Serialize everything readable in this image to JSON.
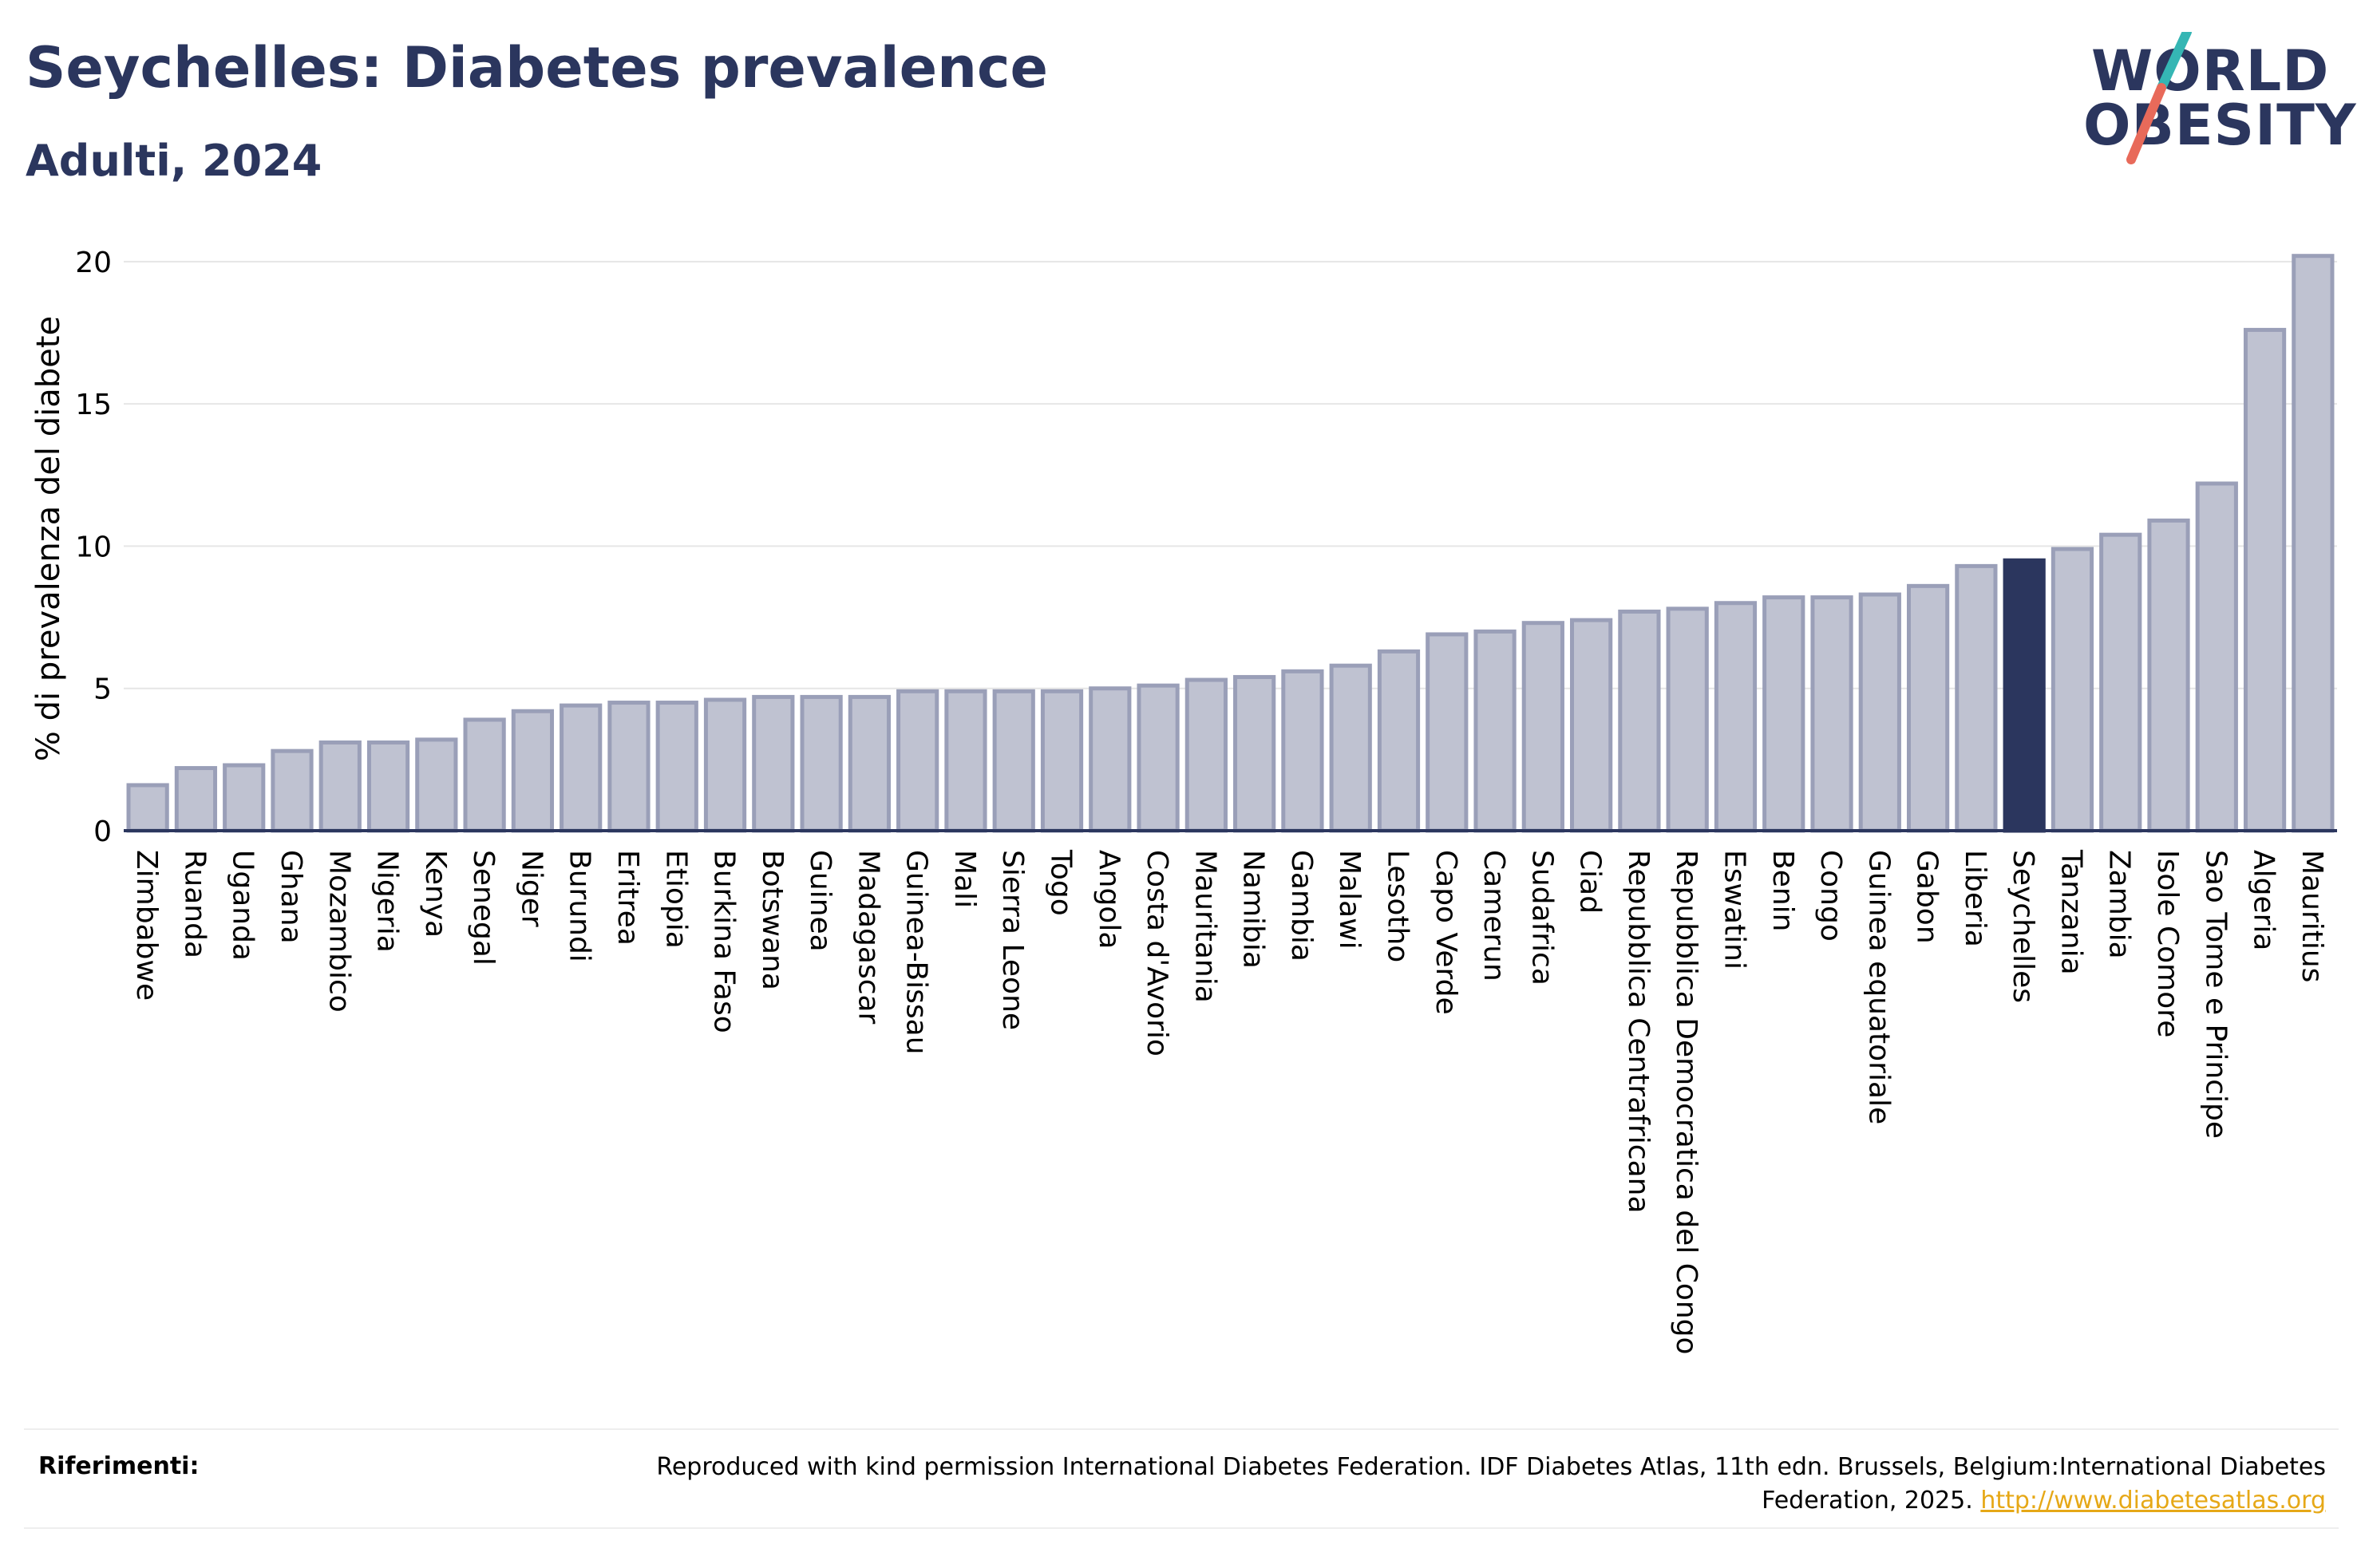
{
  "header": {
    "title": "Seychelles: Diabetes prevalence",
    "subtitle": "Adulti, 2024"
  },
  "logo": {
    "line1": "WORLD",
    "line2": "OBESITY",
    "colors": {
      "navy": "#2b365e",
      "teal": "#35b6b4",
      "coral": "#e86a5a"
    }
  },
  "colors": {
    "bar": "#bfc2d1",
    "bar_stroke": "#9a9fb8",
    "highlight": "#2b365e",
    "gridline": "#e6e6e6",
    "axis": "#2b365e"
  },
  "chart_data": {
    "type": "bar",
    "ylabel": "% di prevalenza del diabete",
    "ylim": [
      0,
      20.5
    ],
    "yticks": [
      "0",
      "5",
      "10",
      "15",
      "20"
    ],
    "highlight": "Seychelles",
    "categories": [
      "Zimbabwe",
      "Ruanda",
      "Uganda",
      "Ghana",
      "Mozambico",
      "Nigeria",
      "Kenya",
      "Senegal",
      "Niger",
      "Burundi",
      "Eritrea",
      "Etiopia",
      "Burkina Faso",
      "Botswana",
      "Guinea",
      "Madagascar",
      "Guinea-Bissau",
      "Mali",
      "Sierra Leone",
      "Togo",
      "Angola",
      "Costa d'Avorio",
      "Mauritania",
      "Namibia",
      "Gambia",
      "Malawi",
      "Lesotho",
      "Capo Verde",
      "Camerun",
      "Sudafrica",
      "Ciad",
      "Repubblica Centrafricana",
      "Repubblica Democratica del Congo",
      "Eswatini",
      "Benin",
      "Congo",
      "Guinea equatoriale",
      "Gabon",
      "Liberia",
      "Seychelles",
      "Tanzania",
      "Zambia",
      "Isole Comore",
      "Sao Tome e Principe",
      "Algeria",
      "Mauritius"
    ],
    "values": [
      1.6,
      2.2,
      2.3,
      2.8,
      3.1,
      3.1,
      3.2,
      3.9,
      4.2,
      4.4,
      4.5,
      4.5,
      4.6,
      4.7,
      4.7,
      4.7,
      4.9,
      4.9,
      4.9,
      4.9,
      5.0,
      5.1,
      5.3,
      5.4,
      5.6,
      5.8,
      6.3,
      6.9,
      7.0,
      7.3,
      7.4,
      7.7,
      7.8,
      8.0,
      8.2,
      8.2,
      8.3,
      8.6,
      9.3,
      9.5,
      9.9,
      10.4,
      10.9,
      12.2,
      17.6,
      20.2
    ]
  },
  "references": {
    "label": "Riferimenti:",
    "text": "Reproduced with kind permission International Diabetes Federation. IDF Diabetes Atlas, 11th edn. Brussels, Belgium:International Diabetes Federation, 2025.",
    "link": "http://www.diabetesatlas.org"
  }
}
